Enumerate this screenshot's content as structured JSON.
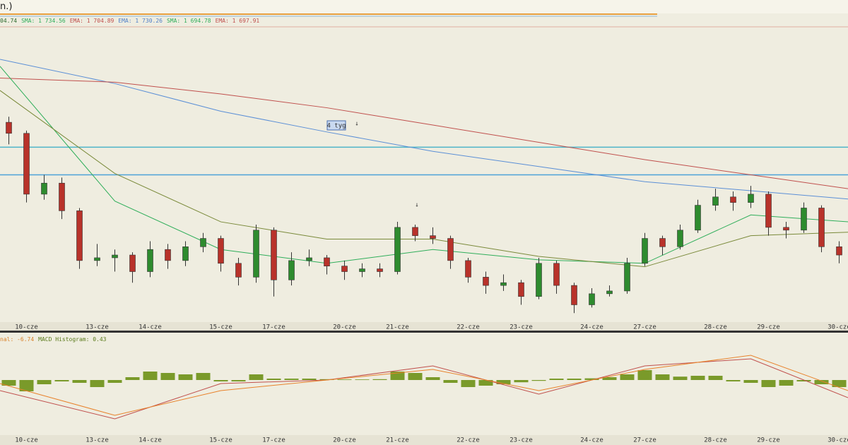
{
  "header": {
    "title": "n.)"
  },
  "chart_data": [
    {
      "type": "candlestick",
      "legend": [
        {
          "text": "04.74",
          "color": "#2e6b2e"
        },
        {
          "text": "SMA: 1 734.56",
          "color": "#2fae5a"
        },
        {
          "text": "EMA: 1 704.89",
          "color": "#c0504d"
        },
        {
          "text": "EMA: 1 730.26",
          "color": "#4f7fc8"
        },
        {
          "text": "SMA: 1 694.78",
          "color": "#2fae5a"
        },
        {
          "text": "EMA: 1 697.91",
          "color": "#c0504d"
        }
      ],
      "categories": [
        null,
        "10-cze",
        null,
        null,
        null,
        "13-cze",
        null,
        null,
        "14-cze",
        null,
        null,
        null,
        "15-cze",
        null,
        null,
        "17-cze",
        null,
        null,
        null,
        "20-cze",
        null,
        null,
        "21-cze",
        null,
        null,
        null,
        "22-cze",
        null,
        null,
        "23-cze",
        null,
        null,
        null,
        "24-cze",
        null,
        null,
        "27-cze",
        null,
        null,
        null,
        "28-cze",
        null,
        null,
        "29-cze",
        null,
        null,
        null,
        "30-cze"
      ],
      "open": [
        1726,
        1722,
        1700,
        1704,
        1694,
        1676,
        1677,
        1678,
        1672,
        1680,
        1676,
        1681,
        1684,
        1675,
        1670,
        1687,
        1669,
        1676,
        1677,
        1674,
        1672,
        1673,
        1672,
        1688,
        1685,
        1684,
        1676,
        1670,
        1667,
        1668,
        1663,
        1675,
        1667,
        1660,
        1664,
        1665,
        1675,
        1684,
        1681,
        1687,
        1696,
        1699,
        1697,
        1700,
        1688,
        1687,
        1695,
        1681
      ],
      "high": [
        1728,
        1723,
        1707,
        1706,
        1695,
        1682,
        1680,
        1679,
        1683,
        1682,
        1683,
        1686,
        1685,
        1677,
        1689,
        1688,
        1679,
        1680,
        1678,
        1676,
        1675,
        1675,
        1690,
        1689,
        1688,
        1685,
        1677,
        1672,
        1671,
        1669,
        1677,
        1676,
        1668,
        1666,
        1667,
        1677,
        1686,
        1685,
        1689,
        1698,
        1702,
        1701,
        1703,
        1701,
        1690,
        1697,
        1696,
        1683
      ],
      "low": [
        1718,
        1697,
        1698,
        1691,
        1673,
        1674,
        1672,
        1668,
        1670,
        1673,
        1674,
        1679,
        1672,
        1667,
        1668,
        1663,
        1667,
        1674,
        1671,
        1669,
        1670,
        1670,
        1671,
        1683,
        1682,
        1673,
        1668,
        1664,
        1665,
        1660,
        1662,
        1664,
        1657,
        1659,
        1663,
        1664,
        1674,
        1678,
        1680,
        1686,
        1694,
        1694,
        1695,
        1685,
        1684,
        1686,
        1679,
        1675
      ],
      "close": [
        1722,
        1700,
        1704,
        1694,
        1676,
        1677,
        1678,
        1672,
        1680,
        1676,
        1681,
        1684,
        1675,
        1670,
        1687,
        1669,
        1676,
        1677,
        1674,
        1672,
        1673,
        1672,
        1688,
        1685,
        1684,
        1676,
        1670,
        1667,
        1668,
        1663,
        1675,
        1667,
        1660,
        1664,
        1665,
        1675,
        1684,
        1681,
        1687,
        1696,
        1699,
        1697,
        1700,
        1688,
        1687,
        1695,
        1681,
        1678
      ],
      "up_color": "#2e8b2e",
      "down_color": "#b8322a",
      "ylim": [
        1654,
        1760
      ],
      "overlays": [
        {
          "color": "#5b8fd6",
          "x": [
            -0.5,
            6,
            12,
            18,
            24,
            30,
            36,
            42,
            47.5
          ],
          "values": [
            1748.75,
            1740,
            1730,
            1722.5,
            1715.5,
            1710,
            1704.5,
            1701.25,
            1698.25
          ]
        },
        {
          "color": "#c0504d",
          "x": [
            -0.5,
            6,
            12,
            18,
            24,
            30,
            36,
            42,
            47.5
          ],
          "values": [
            1742,
            1740.5,
            1736.25,
            1731.25,
            1725,
            1718.75,
            1712.5,
            1707,
            1702
          ]
        },
        {
          "color": "#2fae5a",
          "x": [
            -0.5,
            6,
            12,
            18,
            24,
            30,
            36,
            42,
            47.5
          ],
          "values": [
            1746.25,
            1697.5,
            1680,
            1675,
            1680,
            1676.25,
            1675,
            1692.5,
            1690
          ]
        },
        {
          "color": "#7a8a3a",
          "x": [
            -0.5,
            6,
            12,
            18,
            24,
            30,
            36,
            42,
            47.5
          ],
          "values": [
            1737.5,
            1707.5,
            1690,
            1683.75,
            1683.75,
            1677.5,
            1673.75,
            1685,
            1686.25
          ]
        }
      ],
      "levels": [
        {
          "value": 1717,
          "color": "#4db3c8"
        },
        {
          "value": 1707,
          "color": "#4da3d8"
        }
      ],
      "annotations": [
        "4 tyg",
        "↓",
        "↓"
      ]
    },
    {
      "type": "macd",
      "legend": [
        {
          "text": "nal: -6.74",
          "color": "#d9822b"
        },
        {
          "text": "MACD Histogram: 0.43",
          "color": "#5a7a1a"
        }
      ],
      "categories": [
        null,
        "10-cze",
        null,
        null,
        null,
        "13-cze",
        null,
        null,
        "14-cze",
        null,
        null,
        null,
        "15-cze",
        null,
        null,
        "17-cze",
        null,
        null,
        null,
        "20-cze",
        null,
        null,
        "21-cze",
        null,
        null,
        null,
        "22-cze",
        null,
        null,
        "23-cze",
        null,
        null,
        null,
        "24-cze",
        null,
        null,
        "27-cze",
        null,
        null,
        null,
        "28-cze",
        null,
        null,
        "29-cze",
        null,
        null,
        null,
        "30-cze"
      ],
      "values": [
        -2,
        -4,
        -1.5,
        -0.5,
        -1,
        -2.5,
        -1,
        1,
        3,
        2.5,
        2,
        2.5,
        -0.5,
        -0.5,
        2,
        0.5,
        0.5,
        0.5,
        0.3,
        0.2,
        0.2,
        0.3,
        3,
        2.5,
        1,
        -1,
        -2.5,
        -2,
        -1.5,
        -0.8,
        -0.3,
        0.5,
        0.5,
        0.6,
        1,
        2,
        3.5,
        2,
        1.2,
        1.5,
        1.5,
        -0.5,
        -1,
        -2.5,
        -2,
        -0.5,
        -1.5,
        -2.5
      ],
      "color": "#7a9a2a",
      "series": [
        {
          "color": "#c0504d",
          "x": [
            -0.5,
            6,
            12,
            18,
            24,
            30,
            36,
            42,
            47.5
          ],
          "values": [
            -3.75,
            -13.75,
            -1.25,
            0,
            5,
            -5,
            5,
            7.5,
            -6.25
          ]
        },
        {
          "color": "#e8822b",
          "x": [
            -0.5,
            6,
            12,
            18,
            24,
            30,
            36,
            42,
            47.5
          ],
          "values": [
            -1.25,
            -12.5,
            -3.75,
            0,
            3.75,
            -3.75,
            3.75,
            8.75,
            -3.75
          ]
        }
      ],
      "ylim": [
        -20,
        12.5
      ]
    }
  ]
}
